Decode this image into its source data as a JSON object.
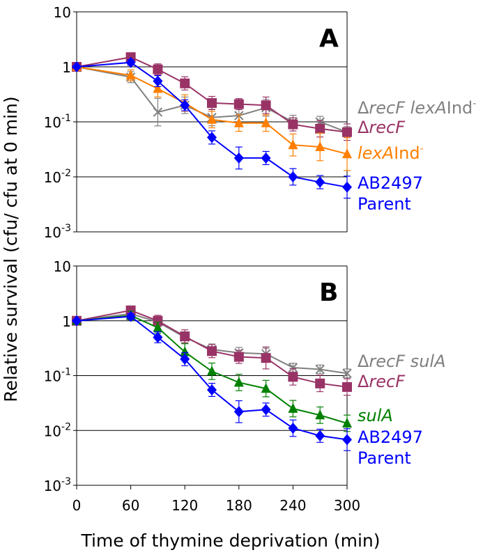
{
  "figure": {
    "ylabel": "Relative survival (cfu/ cfu at 0 min)",
    "xlabel": "Time of thymine deprivation (min)"
  },
  "chart_data": [
    {
      "type": "line",
      "panel_label": "A",
      "yscale": "log",
      "ylim": [
        0.001,
        10
      ],
      "xlim": [
        0,
        300
      ],
      "grid": "horizontal",
      "y_ticks": [
        {
          "base": "10",
          "exp": "-3",
          "value": 0.001
        },
        {
          "base": "10",
          "exp": "-2",
          "value": 0.01
        },
        {
          "base": "10",
          "exp": "-1",
          "value": 0.1
        },
        {
          "base": "1",
          "exp": "",
          "value": 1
        },
        {
          "base": "10",
          "exp": "",
          "value": 10
        }
      ],
      "series": [
        {
          "key": "recF-lexAind",
          "color": "#808080",
          "marker": "x",
          "label_parts": [
            {
              "text": "Δ",
              "style": "normal"
            },
            {
              "text": "recF lexA",
              "style": "italic"
            },
            {
              "text": "Ind",
              "style": "normal"
            },
            {
              "text": "-",
              "style": "sup"
            }
          ],
          "x": [
            0,
            60,
            90,
            120,
            150,
            180,
            210,
            240,
            270,
            300
          ],
          "y": [
            1,
            0.65,
            0.15,
            0.2,
            0.12,
            0.13,
            0.18,
            0.1,
            0.1,
            0.065
          ],
          "err": [
            0.0,
            0.1,
            0.25,
            0.15,
            0.15,
            0.15,
            0.15,
            0.12,
            0.1,
            0.1
          ]
        },
        {
          "key": "recF",
          "color": "#993366",
          "marker": "square",
          "label_parts": [
            {
              "text": "Δ",
              "style": "normal"
            },
            {
              "text": "recF",
              "style": "italic"
            }
          ],
          "x": [
            0,
            60,
            90,
            120,
            150,
            180,
            210,
            240,
            270,
            300
          ],
          "y": [
            1,
            1.5,
            0.9,
            0.5,
            0.22,
            0.21,
            0.2,
            0.09,
            0.075,
            0.065
          ],
          "err": [
            0.0,
            0.05,
            0.1,
            0.12,
            0.12,
            0.1,
            0.15,
            0.12,
            0.15,
            0.15
          ]
        },
        {
          "key": "lexAind",
          "color": "#FF7F00",
          "marker": "triangle",
          "label_parts": [
            {
              "text": "lexA",
              "style": "italic"
            },
            {
              "text": "Ind",
              "style": "normal"
            },
            {
              "text": "-",
              "style": "sup"
            }
          ],
          "x": [
            0,
            60,
            90,
            120,
            150,
            180,
            210,
            240,
            270,
            300
          ],
          "y": [
            1,
            0.7,
            0.4,
            0.22,
            0.11,
            0.095,
            0.095,
            0.038,
            0.035,
            0.026
          ],
          "err": [
            0.0,
            0.1,
            0.15,
            0.15,
            0.15,
            0.15,
            0.15,
            0.2,
            0.25,
            0.3
          ]
        },
        {
          "key": "parent",
          "color": "#0000FF",
          "marker": "diamond",
          "label_parts": [
            {
              "text": "AB2497",
              "style": "normal"
            },
            {
              "text": "Parent",
              "style": "newline"
            }
          ],
          "x": [
            0,
            60,
            90,
            120,
            150,
            180,
            210,
            240,
            270,
            300
          ],
          "y": [
            1,
            1.2,
            0.55,
            0.2,
            0.052,
            0.022,
            0.022,
            0.01,
            0.008,
            0.0065
          ],
          "err": [
            0.0,
            0.05,
            0.1,
            0.1,
            0.12,
            0.2,
            0.12,
            0.15,
            0.12,
            0.2
          ]
        }
      ]
    },
    {
      "type": "line",
      "panel_label": "B",
      "yscale": "log",
      "ylim": [
        0.001,
        10
      ],
      "xlim": [
        0,
        300
      ],
      "grid": "horizontal",
      "x_ticks": [
        "0",
        "60",
        "120",
        "180",
        "240",
        "300"
      ],
      "x_tick_values": [
        0,
        60,
        120,
        180,
        240,
        300
      ],
      "y_ticks": [
        {
          "base": "10",
          "exp": "-3",
          "value": 0.001
        },
        {
          "base": "10",
          "exp": "-2",
          "value": 0.01
        },
        {
          "base": "10",
          "exp": "-1",
          "value": 0.1
        },
        {
          "base": "1",
          "exp": "",
          "value": 1
        },
        {
          "base": "10",
          "exp": "",
          "value": 10
        }
      ],
      "series": [
        {
          "key": "recF-sulA",
          "color": "#808080",
          "marker": "x",
          "label_parts": [
            {
              "text": "Δ",
              "style": "normal"
            },
            {
              "text": "recF sulA",
              "style": "italic"
            }
          ],
          "x": [
            0,
            60,
            90,
            120,
            150,
            180,
            210,
            240,
            270,
            300
          ],
          "y": [
            1,
            1.35,
            0.95,
            0.5,
            0.3,
            0.26,
            0.25,
            0.14,
            0.13,
            0.11
          ],
          "err": [
            0.0,
            0.05,
            0.08,
            0.1,
            0.1,
            0.1,
            0.1,
            0.08,
            0.08,
            0.08
          ]
        },
        {
          "key": "recF",
          "color": "#993366",
          "marker": "square",
          "label_parts": [
            {
              "text": "Δ",
              "style": "normal"
            },
            {
              "text": "recF",
              "style": "italic"
            }
          ],
          "x": [
            0,
            60,
            90,
            120,
            150,
            180,
            210,
            240,
            270,
            300
          ],
          "y": [
            1,
            1.55,
            1.0,
            0.52,
            0.28,
            0.22,
            0.21,
            0.095,
            0.072,
            0.062
          ],
          "err": [
            0.0,
            0.05,
            0.1,
            0.12,
            0.12,
            0.12,
            0.2,
            0.15,
            0.15,
            0.15
          ]
        },
        {
          "key": "sulA",
          "color": "#008000",
          "marker": "triangle",
          "label_parts": [
            {
              "text": "sulA",
              "style": "italic"
            }
          ],
          "x": [
            0,
            60,
            90,
            120,
            150,
            180,
            210,
            240,
            270,
            300
          ],
          "y": [
            1,
            1.25,
            0.75,
            0.27,
            0.12,
            0.075,
            0.058,
            0.025,
            0.019,
            0.0135
          ],
          "err": [
            0.0,
            0.08,
            0.1,
            0.15,
            0.15,
            0.15,
            0.15,
            0.15,
            0.15,
            0.15
          ]
        },
        {
          "key": "parent",
          "color": "#0000FF",
          "marker": "diamond",
          "label_parts": [
            {
              "text": "AB2497",
              "style": "normal"
            },
            {
              "text": "Parent",
              "style": "newline"
            }
          ],
          "x": [
            0,
            60,
            90,
            120,
            150,
            180,
            210,
            240,
            270,
            300
          ],
          "y": [
            1,
            1.2,
            0.5,
            0.2,
            0.055,
            0.022,
            0.024,
            0.011,
            0.008,
            0.0068
          ],
          "err": [
            0.0,
            0.05,
            0.1,
            0.12,
            0.12,
            0.2,
            0.12,
            0.15,
            0.12,
            0.2
          ]
        }
      ]
    }
  ]
}
